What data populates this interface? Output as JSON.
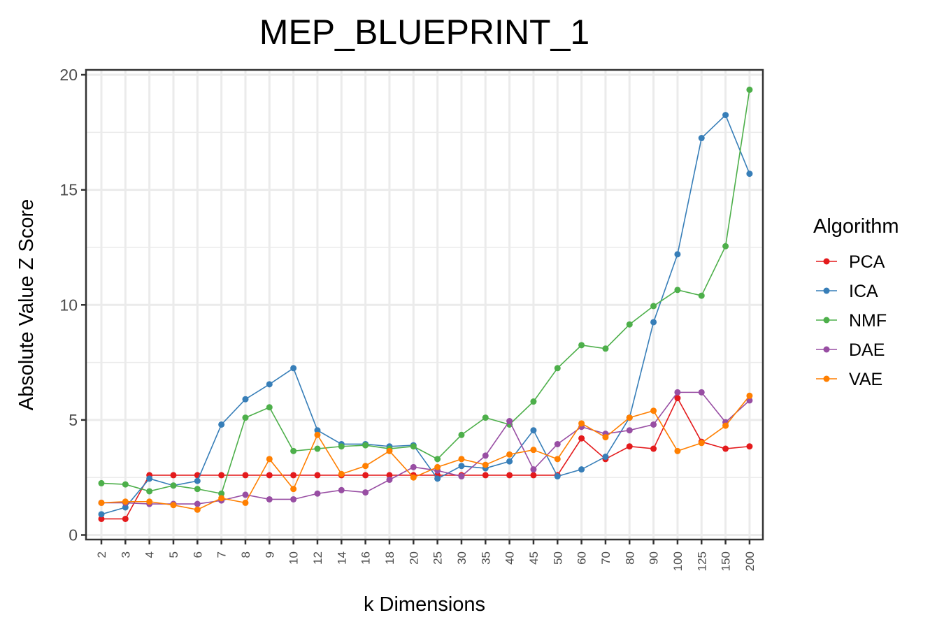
{
  "chart_data": {
    "type": "line",
    "title": "MEP_BLUEPRINT_1",
    "xlabel": "k Dimensions",
    "ylabel": "Absolute Value Z Score",
    "ylim": [
      0,
      20
    ],
    "yticks": [
      0,
      5,
      10,
      15,
      20
    ],
    "grid": true,
    "legend_position": "right",
    "legend_title": "Algorithm",
    "categories": [
      "2",
      "3",
      "4",
      "5",
      "6",
      "7",
      "8",
      "9",
      "10",
      "12",
      "14",
      "16",
      "18",
      "20",
      "25",
      "30",
      "35",
      "40",
      "45",
      "50",
      "60",
      "70",
      "80",
      "90",
      "100",
      "125",
      "150",
      "200"
    ],
    "series": [
      {
        "name": "PCA",
        "color": "#e41a1c",
        "values": [
          0.7,
          0.7,
          2.6,
          2.6,
          2.6,
          2.6,
          2.6,
          2.6,
          2.6,
          2.6,
          2.6,
          2.6,
          2.6,
          2.6,
          2.6,
          2.6,
          2.6,
          2.6,
          2.6,
          2.6,
          4.2,
          3.3,
          3.85,
          3.75,
          5.95,
          4.05,
          3.75,
          3.85
        ]
      },
      {
        "name": "ICA",
        "color": "#377eb8",
        "values": [
          0.9,
          1.2,
          2.45,
          2.15,
          2.35,
          4.8,
          5.9,
          6.55,
          7.25,
          4.55,
          3.95,
          3.95,
          3.85,
          3.9,
          2.45,
          3.0,
          2.9,
          3.2,
          4.55,
          2.55,
          2.85,
          3.4,
          5.1,
          9.25,
          12.2,
          17.25,
          18.25,
          15.7
        ]
      },
      {
        "name": "NMF",
        "color": "#4daf4a",
        "values": [
          2.25,
          2.2,
          1.9,
          2.15,
          2.0,
          1.8,
          5.1,
          5.55,
          3.65,
          3.75,
          3.85,
          3.9,
          3.75,
          3.85,
          3.3,
          4.35,
          5.1,
          4.8,
          5.8,
          7.25,
          8.25,
          8.1,
          9.15,
          9.95,
          10.65,
          10.4,
          12.55,
          19.35
        ]
      },
      {
        "name": "DAE",
        "color": "#984ea3",
        "values": [
          1.4,
          1.4,
          1.35,
          1.35,
          1.35,
          1.5,
          1.75,
          1.55,
          1.55,
          1.8,
          1.95,
          1.85,
          2.4,
          2.95,
          2.8,
          2.55,
          3.45,
          4.95,
          2.85,
          3.95,
          4.7,
          4.4,
          4.55,
          4.8,
          6.2,
          6.2,
          4.9,
          5.85
        ]
      },
      {
        "name": "VAE",
        "color": "#ff7f00",
        "values": [
          1.4,
          1.45,
          1.45,
          1.3,
          1.1,
          1.6,
          1.4,
          3.3,
          2.0,
          4.35,
          2.65,
          3.0,
          3.65,
          2.5,
          2.95,
          3.3,
          3.05,
          3.5,
          3.7,
          3.3,
          4.85,
          4.25,
          5.1,
          5.4,
          3.65,
          4.0,
          4.75,
          6.05
        ]
      }
    ]
  }
}
